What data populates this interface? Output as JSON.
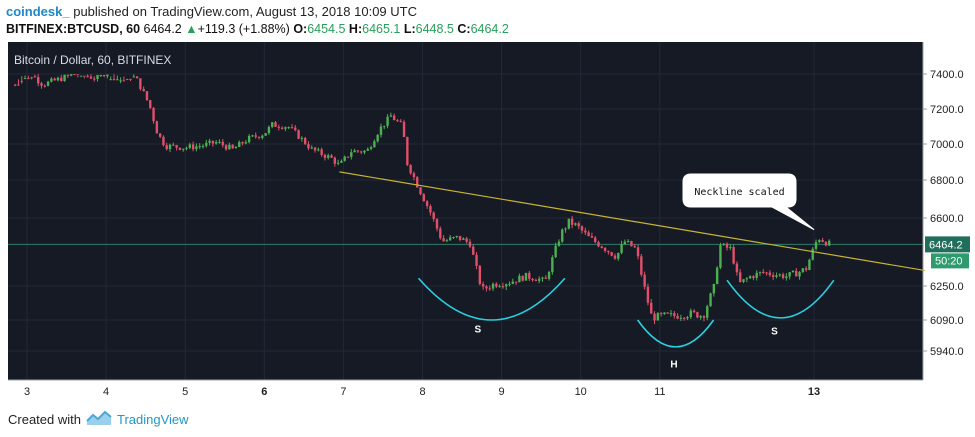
{
  "header": {
    "author": "coindesk_",
    "published": "published on TradingView.com, August 13, 2018 10:09 UTC",
    "symbol": "BITFINEX:BTCUSD, 60",
    "last": "6464.2",
    "change": "+119.3 (+1.88%)",
    "o_label": "O:",
    "o": "6454.5",
    "h_label": "H:",
    "h": "6465.1",
    "l_label": "L:",
    "l": "6448.5",
    "c_label": "C:",
    "c": "6464.2"
  },
  "footer": {
    "created_with": "Created with",
    "brand": "TradingView"
  },
  "colors": {
    "background": "#161a25",
    "up": "#4caf50",
    "down": "#e0506a",
    "neckline": "#c8b432",
    "pattern": "#29d0e0",
    "price_line": "#2e7d6a"
  },
  "chart_data": {
    "type": "candlestick",
    "title": "Bitcoin / Dollar, 60, BITFINEX",
    "x_ticks": [
      {
        "label": "3",
        "day": 3.0,
        "bold": false
      },
      {
        "label": "4",
        "day": 4.0,
        "bold": false
      },
      {
        "label": "5",
        "day": 5.0,
        "bold": false
      },
      {
        "label": "6",
        "day": 6.0,
        "bold": true
      },
      {
        "label": "7",
        "day": 7.0,
        "bold": false
      },
      {
        "label": "8",
        "day": 8.0,
        "bold": false
      },
      {
        "label": "9",
        "day": 9.0,
        "bold": false
      },
      {
        "label": "10",
        "day": 10.0,
        "bold": false
      },
      {
        "label": "11",
        "day": 11.0,
        "bold": false
      },
      {
        "label": "13",
        "day": 12.95,
        "bold": true
      }
    ],
    "y_ticks": [
      7400,
      7200,
      7000,
      6800,
      6600,
      6250,
      6090,
      5940
    ],
    "y_tick_labels": [
      "7400.0",
      "7200.0",
      "7000.0",
      "6800.0",
      "6600.0",
      "6250.0",
      "6090.0",
      "5940.0"
    ],
    "current_price": 6464.2,
    "current_price_label": "6464.2",
    "countdown_label": "50:20",
    "price_path": [
      [
        2.85,
        7460
      ],
      [
        3.0,
        7420
      ],
      [
        3.2,
        7340
      ],
      [
        3.4,
        7370
      ],
      [
        3.6,
        7400
      ],
      [
        3.85,
        7380
      ],
      [
        4.05,
        7420
      ],
      [
        4.2,
        7440
      ],
      [
        4.4,
        7360
      ],
      [
        4.55,
        7220
      ],
      [
        4.65,
        7060
      ],
      [
        4.75,
        6990
      ],
      [
        5.0,
        6980
      ],
      [
        5.2,
        6990
      ],
      [
        5.4,
        7010
      ],
      [
        5.6,
        6970
      ],
      [
        5.8,
        7030
      ],
      [
        6.0,
        7060
      ],
      [
        6.1,
        7110
      ],
      [
        6.3,
        7100
      ],
      [
        6.4,
        7060
      ],
      [
        6.6,
        6970
      ],
      [
        6.85,
        6920
      ],
      [
        6.95,
        6880
      ],
      [
        7.1,
        6960
      ],
      [
        7.3,
        6960
      ],
      [
        7.45,
        7080
      ],
      [
        7.6,
        7160
      ],
      [
        7.75,
        7100
      ],
      [
        7.8,
        6900
      ],
      [
        7.95,
        6760
      ],
      [
        8.1,
        6630
      ],
      [
        8.25,
        6480
      ],
      [
        8.45,
        6500
      ],
      [
        8.6,
        6470
      ],
      [
        8.75,
        6230
      ],
      [
        8.9,
        6260
      ],
      [
        9.1,
        6270
      ],
      [
        9.3,
        6300
      ],
      [
        9.45,
        6290
      ],
      [
        9.55,
        6270
      ],
      [
        9.65,
        6400
      ],
      [
        9.75,
        6520
      ],
      [
        9.85,
        6580
      ],
      [
        9.95,
        6560
      ],
      [
        10.1,
        6500
      ],
      [
        10.25,
        6460
      ],
      [
        10.45,
        6400
      ],
      [
        10.55,
        6480
      ],
      [
        10.7,
        6440
      ],
      [
        10.8,
        6250
      ],
      [
        10.9,
        6100
      ],
      [
        11.05,
        6110
      ],
      [
        11.2,
        6110
      ],
      [
        11.4,
        6120
      ],
      [
        11.55,
        6110
      ],
      [
        11.7,
        6260
      ],
      [
        11.75,
        6460
      ],
      [
        11.9,
        6440
      ],
      [
        12.0,
        6260
      ],
      [
        12.15,
        6300
      ],
      [
        12.3,
        6320
      ],
      [
        12.45,
        6310
      ],
      [
        12.6,
        6300
      ],
      [
        12.75,
        6320
      ],
      [
        12.85,
        6340
      ],
      [
        12.95,
        6450
      ],
      [
        13.0,
        6500
      ],
      [
        13.15,
        6464
      ]
    ],
    "neckline": [
      [
        6.95,
        6845
      ],
      [
        14.35,
        6330
      ]
    ],
    "neckline_label": "Neckline scaled",
    "pattern_labels": [
      {
        "label": "S",
        "day": 8.7,
        "price": 6050
      },
      {
        "label": "H",
        "day": 11.18,
        "price": 5880
      },
      {
        "label": "S",
        "day": 12.45,
        "price": 6040
      }
    ]
  }
}
